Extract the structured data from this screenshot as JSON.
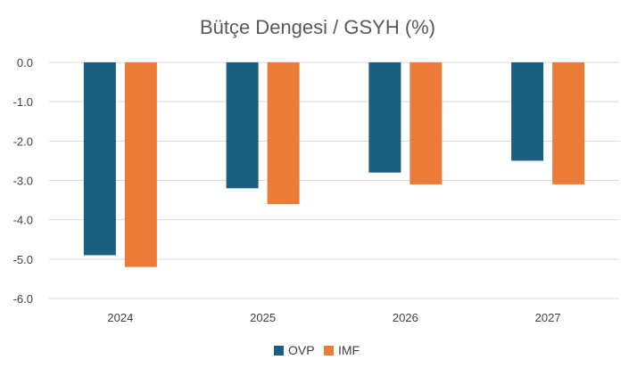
{
  "chart_data": {
    "type": "bar",
    "title": "Bütçe Dengesi  / GSYH (%)",
    "xlabel": "",
    "ylabel": "",
    "categories": [
      "2024",
      "2025",
      "2026",
      "2027"
    ],
    "series": [
      {
        "name": "OVP",
        "values": [
          -4.9,
          -3.2,
          -2.8,
          -2.5
        ],
        "color": "#1b5f80"
      },
      {
        "name": "IMF",
        "values": [
          -5.2,
          -3.6,
          -3.1,
          -3.1
        ],
        "color": "#ec7b37"
      }
    ],
    "ylim": [
      -6.0,
      0.0
    ],
    "yticks": [
      "0.0",
      "-1.0",
      "-2.0",
      "-3.0",
      "-4.0",
      "-5.0",
      "-6.0"
    ],
    "ytick_values": [
      0,
      -1,
      -2,
      -3,
      -4,
      -5,
      -6
    ],
    "grid": true,
    "legend_position": "bottom"
  }
}
